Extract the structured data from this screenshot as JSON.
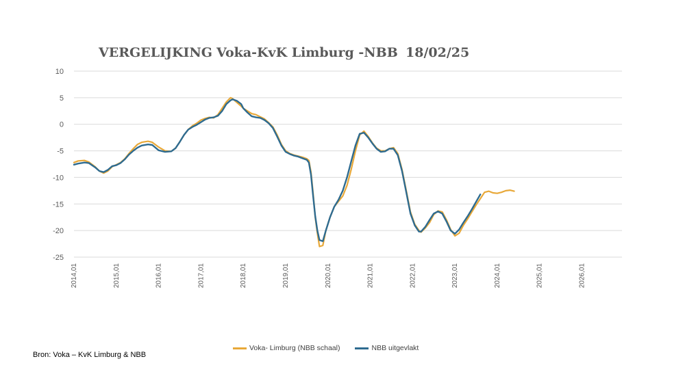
{
  "colors": {
    "series1": "#E8A838",
    "series2": "#2E6B90",
    "grid": "#D9D9D9",
    "tick": "#595959"
  },
  "title": {
    "part1": "VERGELIJKING",
    "part2": "Voka-KvK Limburg -NBB",
    "part3": "18/02/25"
  },
  "source": "Bron: Voka – KvK Limburg & NBB",
  "chart_data": {
    "type": "line",
    "title": "VERGELIJKING Voka-KvK Limburg -NBB 18/02/25",
    "xlabel": "",
    "ylabel": "",
    "ylim": [
      -25,
      10
    ],
    "yticks": [
      "10",
      "5",
      "0",
      "-5",
      "-10",
      "-15",
      "-20",
      "-25"
    ],
    "xticks": [
      "2014,01",
      "2015,01",
      "2016,01",
      "2017,01",
      "2018,01",
      "2019,01",
      "2020,01",
      "2021,01",
      "2022,01",
      "2023,01",
      "2024,01",
      "2025,01",
      "2026,01"
    ],
    "grid": true,
    "legend_position": "bottom",
    "series": [
      {
        "name": "Voka- Limburg (NBB schaal)",
        "color": "#E8A838",
        "points": [
          [
            2014.0,
            -7.2
          ],
          [
            2014.1,
            -6.9
          ],
          [
            2014.25,
            -6.8
          ],
          [
            2014.35,
            -7.1
          ],
          [
            2014.5,
            -8.0
          ],
          [
            2014.6,
            -8.8
          ],
          [
            2014.7,
            -9.2
          ],
          [
            2014.8,
            -8.8
          ],
          [
            2014.9,
            -8.0
          ],
          [
            2015.0,
            -7.6
          ],
          [
            2015.1,
            -7.2
          ],
          [
            2015.2,
            -6.5
          ],
          [
            2015.3,
            -5.5
          ],
          [
            2015.4,
            -4.6
          ],
          [
            2015.5,
            -3.8
          ],
          [
            2015.6,
            -3.4
          ],
          [
            2015.75,
            -3.2
          ],
          [
            2015.85,
            -3.4
          ],
          [
            2016.0,
            -4.3
          ],
          [
            2016.15,
            -5.0
          ],
          [
            2016.3,
            -5.1
          ],
          [
            2016.4,
            -4.5
          ],
          [
            2016.5,
            -3.3
          ],
          [
            2016.6,
            -2.0
          ],
          [
            2016.7,
            -1.0
          ],
          [
            2016.8,
            -0.3
          ],
          [
            2016.9,
            0.2
          ],
          [
            2017.0,
            0.8
          ],
          [
            2017.1,
            1.1
          ],
          [
            2017.2,
            1.3
          ],
          [
            2017.3,
            1.2
          ],
          [
            2017.4,
            1.8
          ],
          [
            2017.5,
            3.0
          ],
          [
            2017.6,
            4.2
          ],
          [
            2017.7,
            5.0
          ],
          [
            2017.75,
            4.8
          ],
          [
            2017.85,
            4.1
          ],
          [
            2017.95,
            3.4
          ],
          [
            2018.0,
            3.0
          ],
          [
            2018.1,
            2.5
          ],
          [
            2018.2,
            2.0
          ],
          [
            2018.3,
            1.8
          ],
          [
            2018.4,
            1.4
          ],
          [
            2018.5,
            1.0
          ],
          [
            2018.6,
            0.3
          ],
          [
            2018.7,
            -0.5
          ],
          [
            2018.8,
            -2.0
          ],
          [
            2018.9,
            -3.8
          ],
          [
            2019.0,
            -5.0
          ],
          [
            2019.1,
            -5.5
          ],
          [
            2019.2,
            -5.8
          ],
          [
            2019.3,
            -6.0
          ],
          [
            2019.4,
            -6.2
          ],
          [
            2019.5,
            -6.5
          ],
          [
            2019.55,
            -6.8
          ],
          [
            2019.6,
            -9.0
          ],
          [
            2019.65,
            -13.0
          ],
          [
            2019.7,
            -17.5
          ],
          [
            2019.75,
            -20.5
          ],
          [
            2019.8,
            -23.0
          ],
          [
            2019.88,
            -22.8
          ],
          [
            2019.95,
            -20.0
          ],
          [
            2020.05,
            -17.5
          ],
          [
            2020.15,
            -15.5
          ],
          [
            2020.25,
            -14.5
          ],
          [
            2020.35,
            -13.5
          ],
          [
            2020.45,
            -11.5
          ],
          [
            2020.55,
            -8.5
          ],
          [
            2020.65,
            -5.0
          ],
          [
            2020.75,
            -2.0
          ],
          [
            2020.85,
            -1.3
          ],
          [
            2020.95,
            -2.3
          ],
          [
            2021.05,
            -3.5
          ],
          [
            2021.15,
            -4.5
          ],
          [
            2021.25,
            -5.0
          ],
          [
            2021.35,
            -5.0
          ],
          [
            2021.45,
            -4.6
          ],
          [
            2021.55,
            -4.4
          ],
          [
            2021.65,
            -5.5
          ],
          [
            2021.75,
            -8.5
          ],
          [
            2021.85,
            -12.5
          ],
          [
            2021.95,
            -16.5
          ],
          [
            2022.05,
            -18.8
          ],
          [
            2022.15,
            -20.0
          ],
          [
            2022.2,
            -20.3
          ],
          [
            2022.3,
            -19.5
          ],
          [
            2022.4,
            -18.5
          ],
          [
            2022.5,
            -17.0
          ],
          [
            2022.6,
            -16.3
          ],
          [
            2022.7,
            -16.5
          ],
          [
            2022.8,
            -18.0
          ],
          [
            2022.9,
            -19.8
          ],
          [
            2023.0,
            -21.0
          ],
          [
            2023.1,
            -20.5
          ],
          [
            2023.2,
            -19.0
          ],
          [
            2023.3,
            -17.8
          ],
          [
            2023.4,
            -16.5
          ],
          [
            2023.5,
            -15.2
          ],
          [
            2023.6,
            -14.0
          ],
          [
            2023.7,
            -12.8
          ],
          [
            2023.8,
            -12.6
          ],
          [
            2023.9,
            -12.9
          ],
          [
            2024.0,
            -13.0
          ],
          [
            2024.1,
            -12.8
          ],
          [
            2024.2,
            -12.5
          ],
          [
            2024.3,
            -12.4
          ],
          [
            2024.4,
            -12.6
          ]
        ]
      },
      {
        "name": "NBB  uitgevlakt",
        "color": "#2E6B90",
        "points": [
          [
            2014.0,
            -7.6
          ],
          [
            2014.1,
            -7.4
          ],
          [
            2014.25,
            -7.2
          ],
          [
            2014.35,
            -7.3
          ],
          [
            2014.5,
            -8.1
          ],
          [
            2014.6,
            -8.8
          ],
          [
            2014.7,
            -9.0
          ],
          [
            2014.8,
            -8.6
          ],
          [
            2014.9,
            -7.9
          ],
          [
            2015.0,
            -7.7
          ],
          [
            2015.1,
            -7.3
          ],
          [
            2015.2,
            -6.6
          ],
          [
            2015.3,
            -5.7
          ],
          [
            2015.4,
            -5.0
          ],
          [
            2015.5,
            -4.4
          ],
          [
            2015.6,
            -4.0
          ],
          [
            2015.75,
            -3.8
          ],
          [
            2015.85,
            -3.9
          ],
          [
            2016.0,
            -4.9
          ],
          [
            2016.15,
            -5.2
          ],
          [
            2016.3,
            -5.1
          ],
          [
            2016.4,
            -4.5
          ],
          [
            2016.5,
            -3.3
          ],
          [
            2016.6,
            -2.0
          ],
          [
            2016.7,
            -1.0
          ],
          [
            2016.8,
            -0.5
          ],
          [
            2016.9,
            -0.1
          ],
          [
            2017.0,
            0.4
          ],
          [
            2017.1,
            0.9
          ],
          [
            2017.2,
            1.2
          ],
          [
            2017.3,
            1.3
          ],
          [
            2017.4,
            1.6
          ],
          [
            2017.5,
            2.5
          ],
          [
            2017.6,
            3.8
          ],
          [
            2017.7,
            4.5
          ],
          [
            2017.75,
            4.7
          ],
          [
            2017.85,
            4.4
          ],
          [
            2017.95,
            3.8
          ],
          [
            2018.0,
            3.0
          ],
          [
            2018.1,
            2.2
          ],
          [
            2018.2,
            1.5
          ],
          [
            2018.3,
            1.3
          ],
          [
            2018.4,
            1.2
          ],
          [
            2018.5,
            0.8
          ],
          [
            2018.6,
            0.2
          ],
          [
            2018.7,
            -0.7
          ],
          [
            2018.8,
            -2.3
          ],
          [
            2018.9,
            -4.0
          ],
          [
            2019.0,
            -5.2
          ],
          [
            2019.1,
            -5.6
          ],
          [
            2019.2,
            -5.9
          ],
          [
            2019.3,
            -6.1
          ],
          [
            2019.4,
            -6.4
          ],
          [
            2019.5,
            -6.7
          ],
          [
            2019.55,
            -7.2
          ],
          [
            2019.6,
            -9.5
          ],
          [
            2019.65,
            -13.5
          ],
          [
            2019.7,
            -17.3
          ],
          [
            2019.75,
            -20.0
          ],
          [
            2019.8,
            -21.8
          ],
          [
            2019.88,
            -22.0
          ],
          [
            2019.95,
            -20.0
          ],
          [
            2020.05,
            -17.5
          ],
          [
            2020.15,
            -15.5
          ],
          [
            2020.25,
            -14.2
          ],
          [
            2020.35,
            -12.5
          ],
          [
            2020.45,
            -10.0
          ],
          [
            2020.55,
            -7.0
          ],
          [
            2020.65,
            -4.0
          ],
          [
            2020.75,
            -1.8
          ],
          [
            2020.85,
            -1.6
          ],
          [
            2020.95,
            -2.5
          ],
          [
            2021.05,
            -3.6
          ],
          [
            2021.15,
            -4.6
          ],
          [
            2021.25,
            -5.2
          ],
          [
            2021.35,
            -5.1
          ],
          [
            2021.45,
            -4.6
          ],
          [
            2021.55,
            -4.6
          ],
          [
            2021.65,
            -5.8
          ],
          [
            2021.75,
            -8.8
          ],
          [
            2021.85,
            -12.8
          ],
          [
            2021.95,
            -16.8
          ],
          [
            2022.05,
            -19.0
          ],
          [
            2022.15,
            -20.2
          ],
          [
            2022.2,
            -20.2
          ],
          [
            2022.3,
            -19.3
          ],
          [
            2022.4,
            -18.0
          ],
          [
            2022.5,
            -16.8
          ],
          [
            2022.6,
            -16.4
          ],
          [
            2022.7,
            -16.8
          ],
          [
            2022.8,
            -18.3
          ],
          [
            2022.9,
            -20.0
          ],
          [
            2023.0,
            -20.6
          ],
          [
            2023.1,
            -19.8
          ],
          [
            2023.2,
            -18.5
          ],
          [
            2023.3,
            -17.3
          ],
          [
            2023.4,
            -16.0
          ],
          [
            2023.5,
            -14.6
          ],
          [
            2023.6,
            -13.2
          ]
        ]
      }
    ]
  }
}
